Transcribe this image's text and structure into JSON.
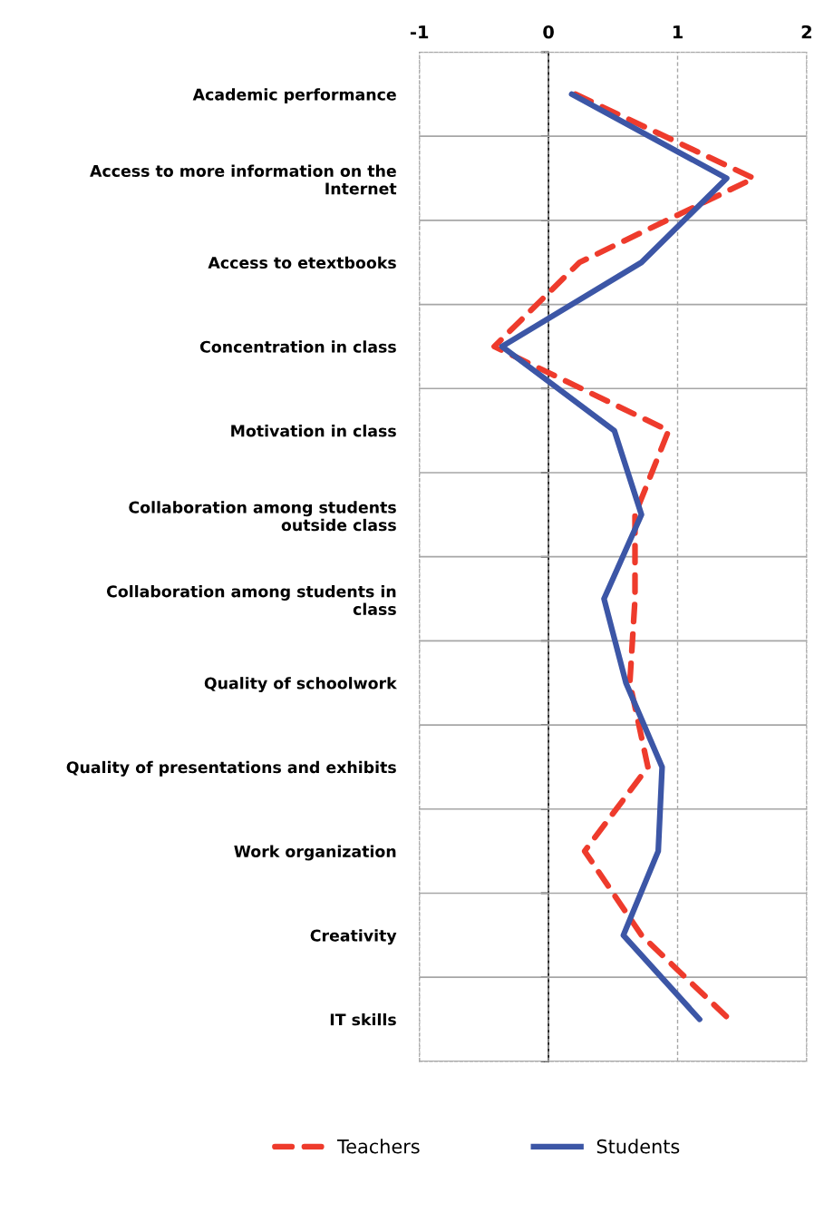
{
  "chart_data": {
    "type": "line",
    "orientation": "horizontal",
    "categories": [
      "Academic performance",
      "Access to more information on the\nInternet",
      "Access to etextbooks",
      "Concentration in class",
      "Motivation in class",
      "Collaboration among students\noutside class",
      "Collaboration among students in\nclass",
      "Quality of schoolwork",
      "Quality of presentations and exhibits",
      "Work organization",
      "Creativity",
      "IT skills"
    ],
    "series": [
      {
        "name": "Teachers",
        "color": "#ee3b2c",
        "line_style": "dashed",
        "values": [
          0.21,
          1.59,
          0.24,
          -0.42,
          0.93,
          0.67,
          0.67,
          0.63,
          0.77,
          0.28,
          0.72,
          1.4
        ]
      },
      {
        "name": "Students",
        "color": "#3c56a6",
        "line_style": "solid",
        "values": [
          0.18,
          1.38,
          0.72,
          -0.36,
          0.51,
          0.72,
          0.43,
          0.6,
          0.88,
          0.85,
          0.58,
          1.17
        ]
      }
    ],
    "xlim": [
      -1,
      2
    ],
    "xticks": [
      -1,
      0,
      1,
      2
    ],
    "grid": true,
    "legend": "bottom",
    "marker": "none"
  }
}
